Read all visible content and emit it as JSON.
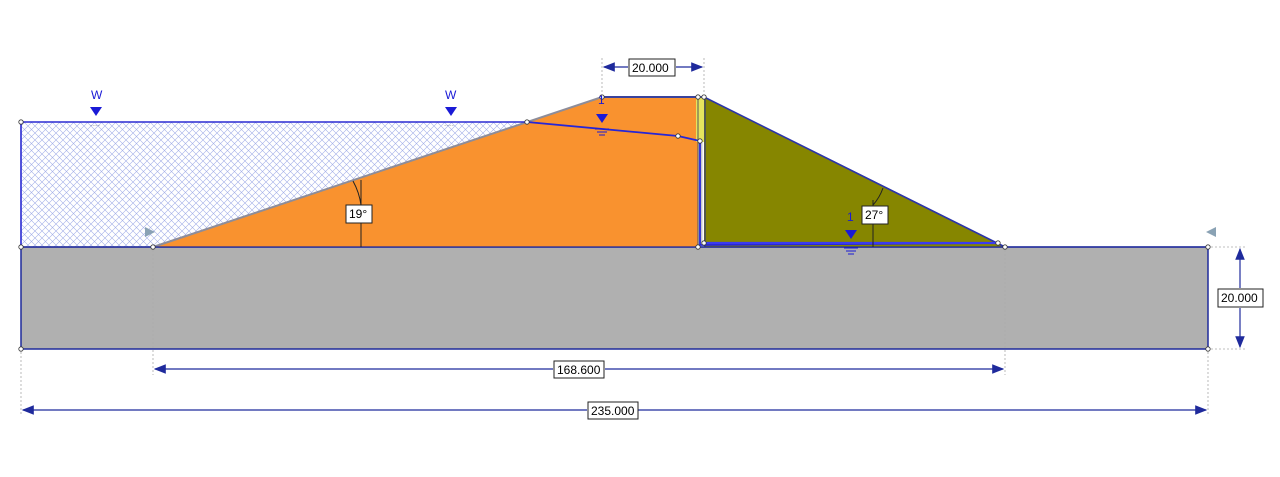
{
  "dimensions": {
    "crest_width": "20.000",
    "base_width": "168.600",
    "total_width": "235.000",
    "foundation_depth": "20.000"
  },
  "angles": {
    "upstream_slope": "19°",
    "downstream_slope": "27°"
  },
  "water_markers": {
    "left_reservoir": "W",
    "right_reservoir": "W",
    "phreatic_upstream": "1",
    "phreatic_downstream": "1"
  },
  "colors": {
    "foundation": "#b0b0b0",
    "upstream_fill": "#f9922f",
    "downstream_fill": "#868600",
    "water_hatch": "#9aa6e6",
    "outline": "#1f2a9c",
    "filter_strip": "#e8e860"
  }
}
